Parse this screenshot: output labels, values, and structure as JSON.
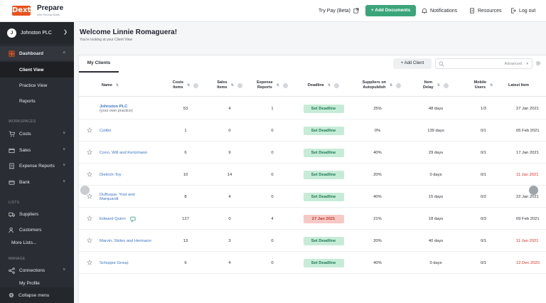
{
  "topbar": {
    "logo": "Dext",
    "product": "Prepare",
    "product_sub": "with Receipt Bank",
    "try_pay": "Try Pay (Beta)",
    "add_documents": "+ Add Documents",
    "notifications": "Notifications",
    "resources": "Resources",
    "logout": "Log out"
  },
  "sidebar": {
    "account": {
      "initial": "J",
      "name": "Johnston PLC"
    },
    "dashboard": "Dashboard",
    "dashboard_sub": [
      "Client View",
      "Practice View",
      "Reports"
    ],
    "workspaces_label": "WORKSPACES",
    "workspaces": [
      "Costs",
      "Sales",
      "Expense Reports",
      "Bank"
    ],
    "lists_label": "LISTS",
    "lists": [
      "Suppliers",
      "Customers",
      "More Lists..."
    ],
    "manage_label": "MANAGE",
    "manage": [
      "Connections",
      "My Profile"
    ],
    "collapse": "Collapse menu"
  },
  "main": {
    "welcome": "Welcome Linnie Romaguera!",
    "welcome_sub": "You're looking at your Client View",
    "tab": "My Clients",
    "add_client": "+ Add Client",
    "search_advanced": "Advanced",
    "columns": {
      "name": "Name",
      "costs": "Costs\nItems",
      "sales": "Sales\nItems",
      "expense": "Expense\nReports",
      "deadline": "Deadline",
      "suppliers": "Suppliers on\nAutopublish",
      "delay": "Item\nDelay",
      "mobile": "Mobile\nUsers",
      "latest": "Latest Item"
    },
    "rows": [
      {
        "name": "Johnston PLC",
        "sub": "(your own practice)",
        "costs": "53",
        "sales": "4",
        "expense": "1",
        "deadline": "Set Deadline",
        "suppliers": "25%",
        "delay": "48 days",
        "mobile": "1/3",
        "latest": "27 Jan 2021",
        "latest_red": false,
        "late": false
      },
      {
        "name": "Colibri",
        "sub": "",
        "costs": "1",
        "sales": "0",
        "expense": "0",
        "deadline": "Set Deadline",
        "suppliers": "0%",
        "delay": "139 days",
        "mobile": "0/1",
        "latest": "05 Feb 2021",
        "latest_red": false,
        "late": false
      },
      {
        "name": "Conn, Will and Kertzmann",
        "sub": "",
        "costs": "6",
        "sales": "9",
        "expense": "0",
        "deadline": "Set Deadline",
        "suppliers": "40%",
        "delay": "29 days",
        "mobile": "0/1",
        "latest": "17 Jan 2021",
        "latest_red": false,
        "late": false
      },
      {
        "name": "Dietrich-Toy",
        "sub": "",
        "costs": "10",
        "sales": "14",
        "expense": "0",
        "deadline": "Set Deadline",
        "suppliers": "20%",
        "delay": "0 days",
        "mobile": "0/1",
        "latest": "11 Jan 2021",
        "latest_red": true,
        "late": false
      },
      {
        "name": "DuBuque, Yost and",
        "sub": "Marquardt",
        "costs": "8",
        "sales": "4",
        "expense": "0",
        "deadline": "Set Deadline",
        "suppliers": "40%",
        "delay": "15 days",
        "mobile": "0/2",
        "latest": "22 Jan 2021",
        "latest_red": false,
        "late": false
      },
      {
        "name": "Edward Quinn",
        "sub": "",
        "costs": "127",
        "sales": "0",
        "expense": "4",
        "deadline": "27 Jan 2021",
        "suppliers": "21%",
        "delay": "18 days",
        "mobile": "0/3",
        "latest": "09 Feb 2021",
        "latest_red": false,
        "late": true
      },
      {
        "name": "Marvin, Skiles and Hermann",
        "sub": "",
        "costs": "13",
        "sales": "3",
        "expense": "0",
        "deadline": "Set Deadline",
        "suppliers": "20%",
        "delay": "40 days",
        "mobile": "0/1",
        "latest": "11 Jan 2021",
        "latest_red": true,
        "late": false
      },
      {
        "name": "Schuppe Group",
        "sub": "",
        "costs": "6",
        "sales": "4",
        "expense": "0",
        "deadline": "Set Deadline",
        "suppliers": "40%",
        "delay": "0 days",
        "mobile": "0/1",
        "latest": "12 Dec 2020",
        "latest_red": true,
        "late": false
      }
    ]
  },
  "colors": {
    "accent": "#3aa57a",
    "brand": "#e8531e",
    "sidebar": "#2a2d33",
    "link": "#3b74c4",
    "late": "#d93025"
  }
}
